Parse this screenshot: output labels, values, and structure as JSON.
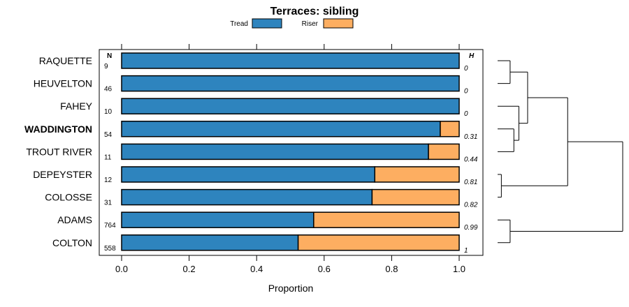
{
  "colors": {
    "tread": "#2e84be",
    "riser": "#fdae61",
    "frame": "#000000"
  },
  "chart_data": {
    "type": "bar",
    "stacked": true,
    "orientation": "horizontal",
    "title": "Terraces: sibling",
    "xlabel": "Proportion",
    "xlim": [
      0,
      1
    ],
    "xticks": [
      "0.0",
      "0.2",
      "0.4",
      "0.6",
      "0.8",
      "1.0"
    ],
    "n_header": "N",
    "h_header": "H",
    "highlight": "WADDINGTON",
    "legend": [
      {
        "name": "Tread",
        "color_key": "tread"
      },
      {
        "name": "Riser",
        "color_key": "riser"
      }
    ],
    "rows": [
      {
        "label": "RAQUETTE",
        "n": "9",
        "h": "0",
        "tread": 1.0
      },
      {
        "label": "HEUVELTON",
        "n": "46",
        "h": "0",
        "tread": 1.0
      },
      {
        "label": "FAHEY",
        "n": "10",
        "h": "0",
        "tread": 1.0
      },
      {
        "label": "WADDINGTON",
        "n": "54",
        "h": "0.31",
        "tread": 0.944
      },
      {
        "label": "TROUT RIVER",
        "n": "11",
        "h": "0.44",
        "tread": 0.909
      },
      {
        "label": "DEPEYSTER",
        "n": "12",
        "h": "0.81",
        "tread": 0.75
      },
      {
        "label": "COLOSSE",
        "n": "31",
        "h": "0.82",
        "tread": 0.742
      },
      {
        "label": "ADAMS",
        "n": "764",
        "h": "0.99",
        "tread": 0.569
      },
      {
        "label": "COLTON",
        "n": "558",
        "h": "1",
        "tread": 0.523
      }
    ],
    "dendrogram": {
      "leaf_order": [
        "RAQUETTE",
        "HEUVELTON",
        "FAHEY",
        "WADDINGTON",
        "TROUT RIVER",
        "DEPEYSTER",
        "COLOSSE",
        "ADAMS",
        "COLTON"
      ],
      "merges": [
        {
          "a": "RAQUETTE",
          "b": "HEUVELTON",
          "height": 0.1
        },
        {
          "a": "WADDINGTON",
          "b": "TROUT RIVER",
          "height": 0.13
        },
        {
          "a": "DEPEYSTER",
          "b": "COLOSSE",
          "height": 0.03
        },
        {
          "a": "ADAMS",
          "b": "COLTON",
          "height": 0.1
        },
        {
          "a": "FAHEY",
          "b": "m2",
          "height": 0.17
        },
        {
          "a": "m1",
          "b": "m5",
          "height": 0.24
        },
        {
          "a": "m6",
          "b": "m3",
          "height": 0.56
        },
        {
          "a": "m7",
          "b": "m4",
          "height": 1.0
        }
      ]
    }
  }
}
